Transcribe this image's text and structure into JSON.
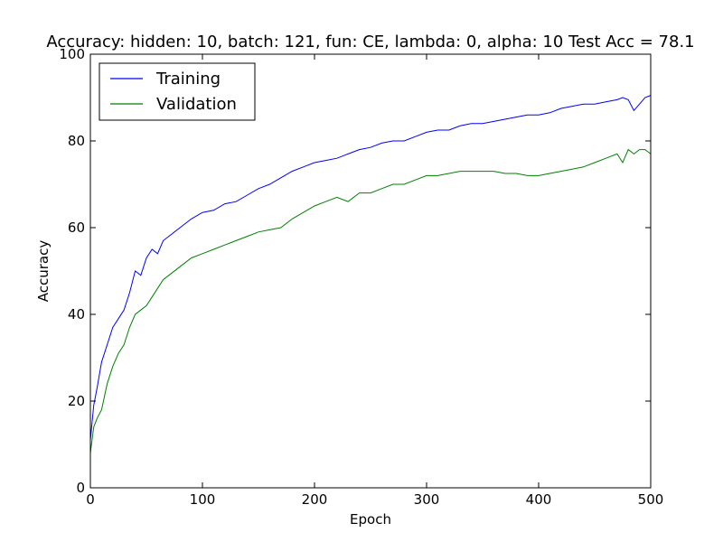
{
  "chart_data": {
    "type": "line",
    "title": "Accuracy: hidden: 10, batch: 121, fun: CE, lambda: 0, alpha: 10  Test Acc = 78.1",
    "xlabel": "Epoch",
    "ylabel": "Accuracy",
    "xlim": [
      0,
      500
    ],
    "ylim": [
      0,
      100
    ],
    "xticks": [
      0,
      100,
      200,
      300,
      400,
      500
    ],
    "yticks": [
      0,
      20,
      40,
      60,
      80,
      100
    ],
    "grid": false,
    "legend_position": "top-left",
    "series": [
      {
        "name": "Training",
        "color": "#0000ff",
        "x": [
          0,
          3,
          6,
          10,
          15,
          20,
          25,
          30,
          35,
          40,
          45,
          50,
          55,
          60,
          65,
          70,
          80,
          90,
          100,
          110,
          120,
          130,
          140,
          150,
          160,
          170,
          180,
          190,
          200,
          210,
          220,
          230,
          240,
          250,
          260,
          270,
          280,
          290,
          300,
          310,
          320,
          330,
          340,
          350,
          360,
          370,
          380,
          390,
          400,
          410,
          420,
          430,
          440,
          450,
          460,
          470,
          475,
          480,
          485,
          490,
          495,
          500
        ],
        "values": [
          11,
          19,
          23,
          29,
          33,
          37,
          39,
          41,
          45,
          50,
          49,
          53,
          55,
          54,
          57,
          58,
          60,
          62,
          63.5,
          64,
          65.5,
          66,
          67.5,
          69,
          70,
          71.5,
          73,
          74,
          75,
          75.5,
          76,
          77,
          78,
          78.5,
          79.5,
          80,
          80,
          81,
          82,
          82.5,
          82.5,
          83.5,
          84,
          84,
          84.5,
          85,
          85.5,
          86,
          86,
          86.5,
          87.5,
          88,
          88.5,
          88.5,
          89,
          89.5,
          90,
          89.5,
          87,
          88.5,
          90,
          90.5
        ]
      },
      {
        "name": "Validation",
        "color": "#008000",
        "x": [
          0,
          3,
          6,
          10,
          15,
          20,
          25,
          30,
          35,
          40,
          45,
          50,
          55,
          60,
          65,
          70,
          80,
          90,
          100,
          110,
          120,
          130,
          140,
          150,
          160,
          170,
          180,
          190,
          200,
          210,
          220,
          230,
          240,
          250,
          260,
          270,
          280,
          290,
          300,
          310,
          320,
          330,
          340,
          350,
          360,
          370,
          380,
          390,
          400,
          410,
          420,
          430,
          440,
          450,
          460,
          470,
          475,
          480,
          485,
          490,
          495,
          500
        ],
        "values": [
          8,
          14,
          16,
          18,
          24,
          28,
          31,
          33,
          37,
          40,
          41,
          42,
          44,
          46,
          48,
          49,
          51,
          53,
          54,
          55,
          56,
          57,
          58,
          59,
          59.5,
          60,
          62,
          63.5,
          65,
          66,
          67,
          66,
          68,
          68,
          69,
          70,
          70,
          71,
          72,
          72,
          72.5,
          73,
          73,
          73,
          73,
          72.5,
          72.5,
          72,
          72,
          72.5,
          73,
          73.5,
          74,
          75,
          76,
          77,
          75,
          78,
          77,
          78,
          78,
          77
        ]
      }
    ]
  }
}
